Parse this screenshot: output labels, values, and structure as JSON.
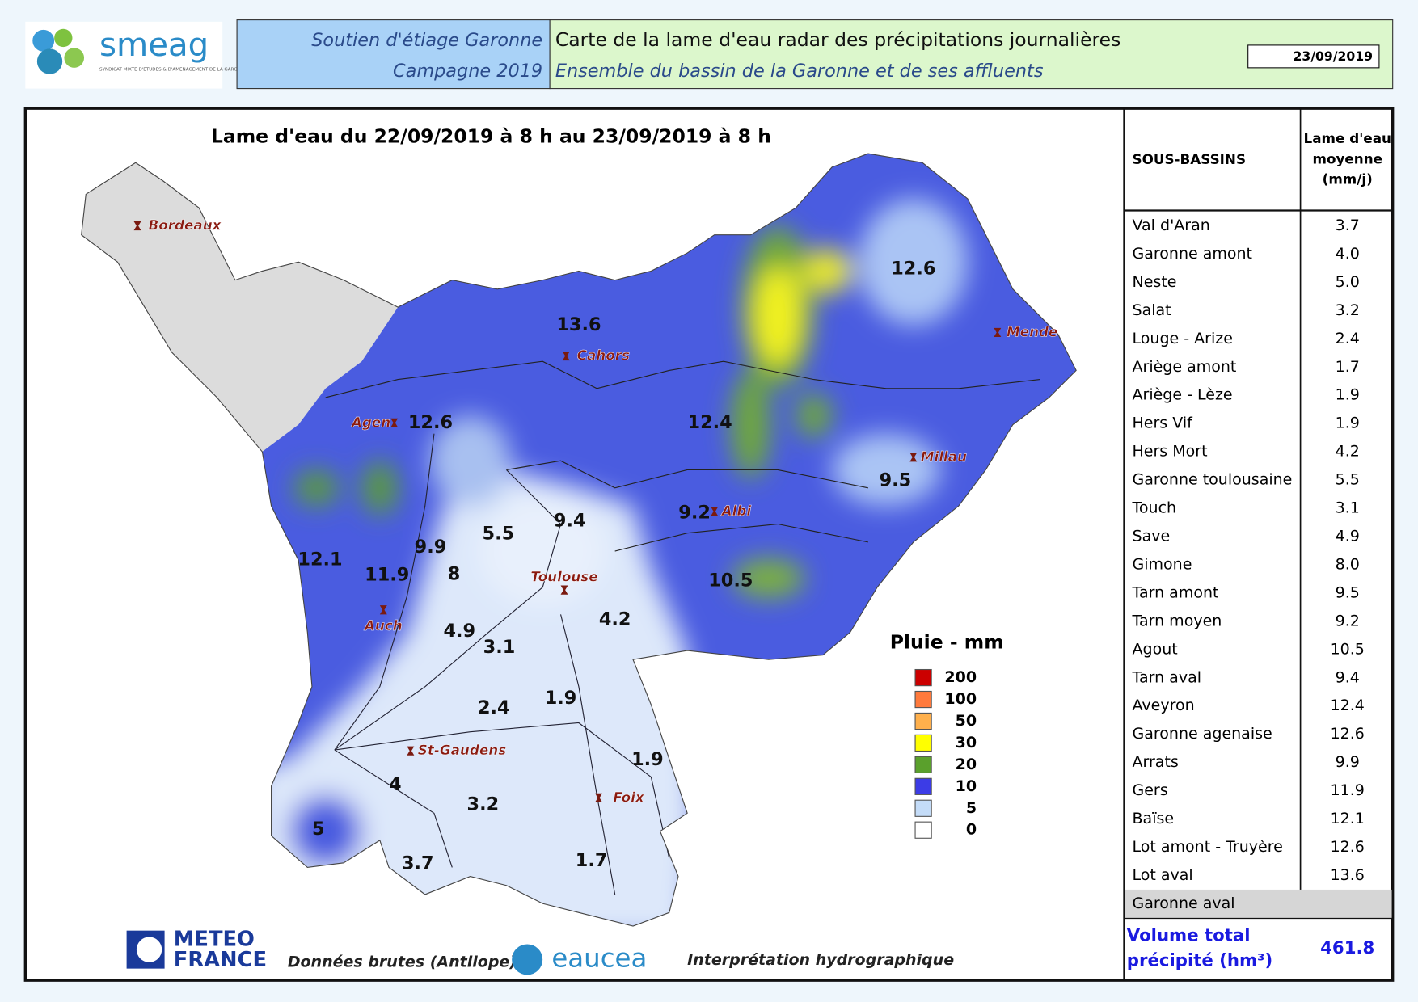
{
  "header": {
    "logo": "smeag",
    "logo_subtitle": "SYNDICAT MIXTE D'ETUDES & D'AMENAGEMENT DE LA GARONNE",
    "program": "Soutien d'étiage Garonne",
    "campaign": "Campagne 2019",
    "title": "Carte de la lame d'eau radar des précipitations journalières",
    "subtitle": "Ensemble du bassin de la Garonne et de ses affluents",
    "date": "23/09/2019"
  },
  "map": {
    "title": "Lame d'eau du 22/09/2019 à 8 h au 23/09/2019 à 8 h",
    "places": [
      "Bordeaux",
      "Mende",
      "Cahors",
      "Agen",
      "Millau",
      "Albi",
      "Toulouse",
      "Auch",
      "St-Gaudens",
      "Foix"
    ],
    "basin_values": [
      12.6,
      13.6,
      12.6,
      12.4,
      9.5,
      9.2,
      9.4,
      5.5,
      9.9,
      8,
      12.1,
      11.9,
      10.5,
      4.2,
      4.9,
      3.1,
      1.9,
      2.4,
      1.9,
      4,
      3.2,
      5,
      3.7,
      1.7
    ],
    "legend": {
      "title": "Pluie - mm",
      "entries": [
        {
          "value": 200,
          "color": "#cc0000"
        },
        {
          "value": 100,
          "color": "#ff7a3c"
        },
        {
          "value": 50,
          "color": "#ffb04c"
        },
        {
          "value": 30,
          "color": "#ffff00"
        },
        {
          "value": 20,
          "color": "#5aa02c"
        },
        {
          "value": 10,
          "color": "#3c3ce6"
        },
        {
          "value": 5,
          "color": "#c4dcf8"
        },
        {
          "value": 0,
          "color": "#ffffff"
        }
      ]
    }
  },
  "table": {
    "header_name": "SOUS-BASSINS",
    "header_value": [
      "Lame d'eau",
      "moyenne",
      "(mm/j)"
    ],
    "rows": [
      [
        "Val d'Aran",
        "3.7"
      ],
      [
        "Garonne amont",
        "4.0"
      ],
      [
        "Neste",
        "5.0"
      ],
      [
        "Salat",
        "3.2"
      ],
      [
        "Louge - Arize",
        "2.4"
      ],
      [
        "Ariège amont",
        "1.7"
      ],
      [
        "Ariège - Lèze",
        "1.9"
      ],
      [
        "Hers Vif",
        "1.9"
      ],
      [
        "Hers Mort",
        "4.2"
      ],
      [
        "Garonne toulousaine",
        "5.5"
      ],
      [
        "Touch",
        "3.1"
      ],
      [
        "Save",
        "4.9"
      ],
      [
        "Gimone",
        "8.0"
      ],
      [
        "Tarn amont",
        "9.5"
      ],
      [
        "Tarn moyen",
        "9.2"
      ],
      [
        "Agout",
        "10.5"
      ],
      [
        "Tarn aval",
        "9.4"
      ],
      [
        "Aveyron",
        "12.4"
      ],
      [
        "Garonne agenaise",
        "12.6"
      ],
      [
        "Arrats",
        "9.9"
      ],
      [
        "Gers",
        "11.9"
      ],
      [
        "Baïse",
        "12.1"
      ],
      [
        "Lot amont - Truyère",
        "12.6"
      ],
      [
        "Lot aval",
        "13.6"
      ],
      [
        "Garonne aval"
      ]
    ]
  },
  "total": {
    "label": [
      "Volume total",
      "précipité (hm³)"
    ],
    "value": "461.8"
  },
  "footer": {
    "meteo_logo": [
      "METEO",
      "FRANCE"
    ],
    "source": "Données brutes (Antilope)",
    "eaucea": "eaucea",
    "interpretation": "Interprétation hydrographique"
  }
}
